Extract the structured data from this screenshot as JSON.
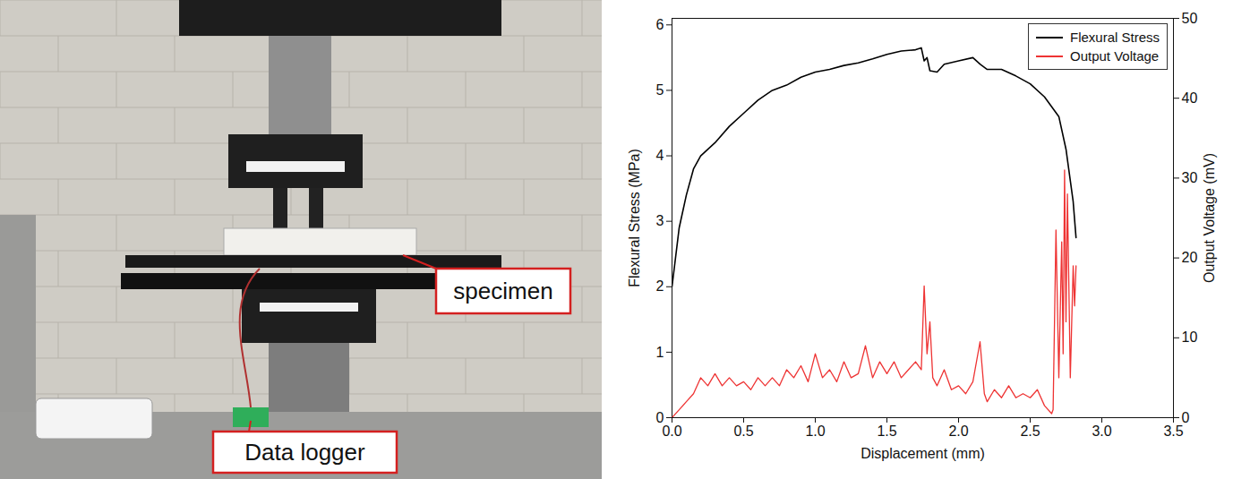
{
  "photo": {
    "labels": [
      "specimen",
      "Data logger"
    ]
  },
  "chart_data": {
    "type": "line",
    "x_label": "Displacement (mm)",
    "y_label": "Flexural Stress (MPa)",
    "y2_label": "Output Voltage (mV)",
    "xlim": [
      0,
      3.5
    ],
    "xticks": [
      {
        "value": 0,
        "label": "0.0"
      },
      {
        "value": 0.5,
        "label": "0.5"
      },
      {
        "value": 1,
        "label": "1.0"
      },
      {
        "value": 1.5,
        "label": "1.5"
      },
      {
        "value": 2,
        "label": "2.0"
      },
      {
        "value": 2.5,
        "label": "2.5"
      },
      {
        "value": 3,
        "label": "3.0"
      },
      {
        "value": 3.5,
        "label": "3.5"
      }
    ],
    "ylim": [
      0,
      6.1
    ],
    "yticks": [
      0,
      1,
      2,
      3,
      4,
      5,
      6
    ],
    "y2lim": [
      0,
      50
    ],
    "y2ticks": [
      0,
      10,
      20,
      30,
      40,
      50
    ],
    "grid": false,
    "legend": "top-right",
    "series": [
      {
        "name": "Flexural Stress",
        "color": "#000000",
        "axis": "y",
        "x": [
          0,
          0.05,
          0.1,
          0.15,
          0.2,
          0.3,
          0.4,
          0.5,
          0.6,
          0.7,
          0.8,
          0.9,
          1.0,
          1.1,
          1.2,
          1.3,
          1.4,
          1.5,
          1.6,
          1.7,
          1.74,
          1.76,
          1.78,
          1.8,
          1.85,
          1.9,
          2.0,
          2.1,
          2.15,
          2.2,
          2.3,
          2.4,
          2.5,
          2.6,
          2.7,
          2.75,
          2.8,
          2.82
        ],
        "values": [
          2.0,
          2.9,
          3.4,
          3.8,
          4.0,
          4.2,
          4.45,
          4.65,
          4.85,
          5.0,
          5.08,
          5.2,
          5.28,
          5.32,
          5.38,
          5.42,
          5.48,
          5.55,
          5.6,
          5.62,
          5.65,
          5.45,
          5.5,
          5.3,
          5.28,
          5.4,
          5.45,
          5.5,
          5.4,
          5.32,
          5.32,
          5.22,
          5.1,
          4.9,
          4.6,
          4.1,
          3.3,
          2.75
        ]
      },
      {
        "name": "Output Voltage",
        "color": "#ee3333",
        "axis": "y2",
        "x": [
          0,
          0.05,
          0.1,
          0.15,
          0.2,
          0.25,
          0.3,
          0.35,
          0.4,
          0.45,
          0.5,
          0.55,
          0.6,
          0.65,
          0.7,
          0.75,
          0.8,
          0.85,
          0.9,
          0.95,
          1.0,
          1.05,
          1.1,
          1.15,
          1.2,
          1.25,
          1.3,
          1.35,
          1.4,
          1.45,
          1.5,
          1.55,
          1.6,
          1.65,
          1.7,
          1.74,
          1.76,
          1.78,
          1.8,
          1.82,
          1.85,
          1.9,
          1.95,
          2.0,
          2.05,
          2.1,
          2.15,
          2.18,
          2.2,
          2.25,
          2.3,
          2.35,
          2.4,
          2.45,
          2.5,
          2.55,
          2.6,
          2.65,
          2.66,
          2.68,
          2.7,
          2.72,
          2.73,
          2.74,
          2.75,
          2.76,
          2.78,
          2.8,
          2.81,
          2.82
        ],
        "values": [
          0,
          1,
          2,
          3,
          5,
          4,
          5.5,
          4,
          5,
          4,
          4.5,
          3.5,
          5,
          4,
          5,
          4,
          6,
          5,
          6.5,
          4.5,
          8,
          5,
          6,
          4.5,
          7,
          5,
          5.5,
          9,
          5,
          7,
          5.5,
          7,
          5,
          6,
          7,
          6,
          16.5,
          8,
          12,
          5,
          4,
          6,
          3.5,
          4,
          3,
          4.5,
          9.5,
          3,
          2,
          3.5,
          2.5,
          4,
          2.5,
          3,
          2.5,
          3.5,
          1.5,
          0.5,
          1,
          23.5,
          5,
          22,
          8,
          31,
          12,
          28,
          5,
          19,
          14,
          19
        ]
      }
    ]
  }
}
